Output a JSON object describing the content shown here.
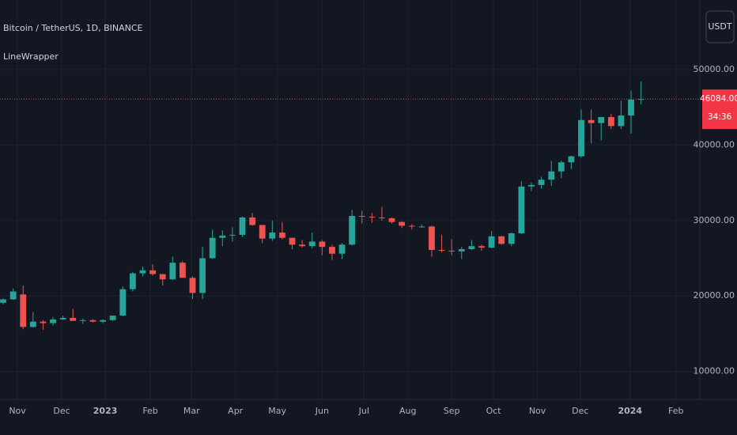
{
  "chart_data": {
    "type": "candlestick",
    "title": "Bitcoin / TetherUS, 1D, BINANCE",
    "subtitle": "LineWrapper",
    "currency": "USDT",
    "open": [
      19100,
      19550,
      20200,
      15900,
      16600,
      16400,
      16900,
      17100,
      16700,
      16800,
      16600,
      16800,
      17400,
      20900,
      23000,
      23400,
      22900,
      22200,
      24400,
      22400,
      20400,
      25000,
      27700,
      28000,
      28100,
      30400,
      29400,
      27600,
      28400,
      27700,
      26800,
      26600,
      27200,
      26500,
      25600,
      26800,
      30600,
      30500,
      30400,
      30300,
      29800,
      29300,
      29200,
      29200,
      26100,
      26000,
      25900,
      26200,
      26600,
      26400,
      27900,
      26900,
      28300,
      34500,
      34700,
      35400,
      36500,
      37700,
      38500,
      43300,
      42900,
      43700,
      42500,
      43900,
      46000
    ],
    "high": [
      19700,
      21000,
      21400,
      17900,
      16800,
      17200,
      17400,
      18300,
      17000,
      16900,
      16900,
      17400,
      21300,
      23200,
      23900,
      24200,
      22900,
      25200,
      24600,
      22600,
      26500,
      28800,
      28700,
      29100,
      30500,
      31000,
      29400,
      30000,
      29800,
      27700,
      27400,
      28400,
      27400,
      26800,
      27000,
      31400,
      31300,
      31000,
      31800,
      30400,
      29900,
      29500,
      29500,
      29300,
      28100,
      27500,
      26500,
      27400,
      26800,
      28600,
      28000,
      28400,
      35200,
      35000,
      35800,
      37900,
      37900,
      38600,
      44700,
      44700,
      43400,
      44100,
      45900,
      47200,
      48400
    ],
    "low": [
      18900,
      19500,
      15600,
      15800,
      15500,
      16100,
      16800,
      16900,
      16300,
      16500,
      16400,
      16700,
      17300,
      20600,
      22600,
      22700,
      21400,
      22100,
      22500,
      19600,
      19600,
      24900,
      26600,
      27200,
      27800,
      29300,
      27000,
      27300,
      27500,
      26200,
      26400,
      26300,
      25400,
      24800,
      24900,
      26700,
      29600,
      29700,
      30000,
      29600,
      29000,
      28800,
      29000,
      25200,
      25800,
      25400,
      24900,
      26100,
      26000,
      26300,
      26800,
      26600,
      28200,
      33900,
      34200,
      34600,
      35600,
      36800,
      38300,
      40200,
      40600,
      42100,
      42100,
      41500,
      45400
    ],
    "close": [
      19550,
      20600,
      15900,
      16600,
      16400,
      16900,
      17100,
      16700,
      16800,
      16600,
      16800,
      17400,
      20900,
      23000,
      23400,
      22900,
      22200,
      24400,
      22400,
      20400,
      25000,
      27700,
      28000,
      28100,
      30400,
      29400,
      27600,
      28400,
      27700,
      26800,
      26600,
      27200,
      26500,
      25600,
      26800,
      30600,
      30500,
      30400,
      30300,
      29800,
      29300,
      29200,
      29200,
      26100,
      26000,
      25900,
      26200,
      26600,
      26400,
      27900,
      26900,
      28300,
      34500,
      34700,
      35400,
      36500,
      37700,
      38500,
      43300,
      42900,
      43700,
      42500,
      43900,
      46000,
      46084
    ],
    "up_color": "#26a69a",
    "down_color": "#ef5350",
    "xlim": [
      -0.32,
      69.9
    ],
    "ylim": [
      6300,
      59200
    ],
    "xticks": [
      {
        "value": 1.43,
        "label": "Nov"
      },
      {
        "value": 5.87,
        "label": "Dec"
      },
      {
        "value": 10.24,
        "label": "2023"
      },
      {
        "value": 14.76,
        "label": "Feb"
      },
      {
        "value": 18.9,
        "label": "Mar"
      },
      {
        "value": 23.3,
        "label": "Apr"
      },
      {
        "value": 27.5,
        "label": "May"
      },
      {
        "value": 32.0,
        "label": "Jun"
      },
      {
        "value": 36.2,
        "label": "Jul"
      },
      {
        "value": 40.6,
        "label": "Aug"
      },
      {
        "value": 45.0,
        "label": "Sep"
      },
      {
        "value": 49.2,
        "label": "Oct"
      },
      {
        "value": 53.6,
        "label": "Nov"
      },
      {
        "value": 57.9,
        "label": "Dec"
      },
      {
        "value": 62.9,
        "label": "2024"
      },
      {
        "value": 67.5,
        "label": "Feb"
      }
    ],
    "yticks": [
      {
        "value": 10000,
        "label": "10000.00"
      },
      {
        "value": 20000,
        "label": "20000.00"
      },
      {
        "value": 30000,
        "label": "30000.00"
      },
      {
        "value": 40000,
        "label": "40000.00"
      },
      {
        "value": 50000,
        "label": "50000.00"
      }
    ],
    "grid": true,
    "last_price": {
      "value": 46084,
      "label": "46084.00"
    },
    "countdown": "34:36",
    "last_price_color": "#f23645"
  }
}
